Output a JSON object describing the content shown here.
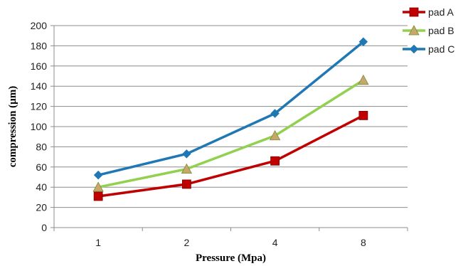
{
  "chart_data": {
    "type": "line",
    "title": "",
    "xlabel": "Pressure (Mpa)",
    "ylabel": "compression (µm)",
    "categories": [
      "1",
      "2",
      "4",
      "8"
    ],
    "ylim": [
      0,
      200
    ],
    "ytick_step": 20,
    "ytick_labels": [
      "0",
      "20",
      "40",
      "60",
      "80",
      "100",
      "120",
      "140",
      "160",
      "180",
      "200"
    ],
    "grid": "horizontal",
    "legend_position": "top-right",
    "series": [
      {
        "name": "pad A",
        "values": [
          31,
          43,
          66,
          111
        ],
        "color": "#c00000",
        "marker": "square"
      },
      {
        "name": "pad B",
        "values": [
          40,
          58,
          91,
          146
        ],
        "color": "#92d050",
        "marker": "triangle"
      },
      {
        "name": "pad C",
        "values": [
          52,
          73,
          113,
          184
        ],
        "color": "#1f77b4",
        "marker": "diamond"
      }
    ]
  }
}
